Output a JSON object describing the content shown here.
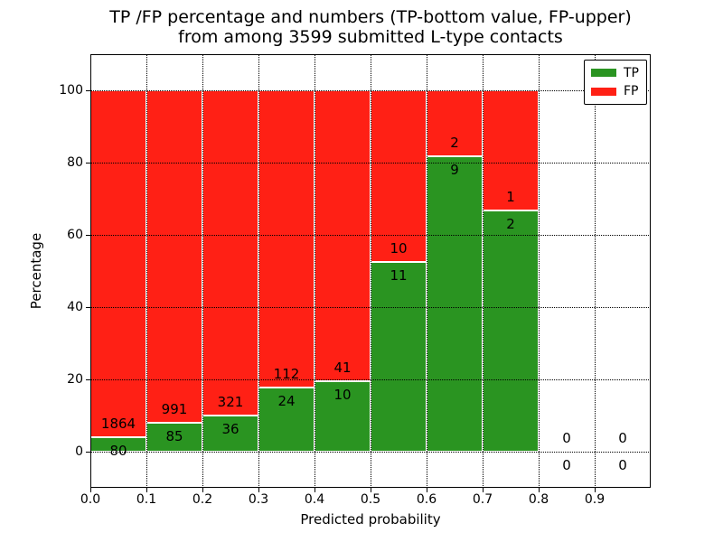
{
  "chart_data": {
    "type": "bar",
    "stacked": true,
    "title_line1": "TP /FP percentage and numbers (TP-bottom value, FP-upper)",
    "title_line2": "from among 3599 submitted L-type contacts",
    "xlabel": "Predicted probability",
    "ylabel": "Percentage",
    "total_submitted": 3599,
    "xlim": [
      0.0,
      1.0
    ],
    "ylim": [
      -10,
      110
    ],
    "xticks": [
      "0.0",
      "0.1",
      "0.2",
      "0.3",
      "0.4",
      "0.5",
      "0.6",
      "0.7",
      "0.8",
      "0.9"
    ],
    "yticks": [
      0,
      20,
      40,
      60,
      80,
      100
    ],
    "grid": true,
    "bin_width": 0.1,
    "bins": [
      {
        "x0": 0.0,
        "tp": 80,
        "fp": 1864,
        "tp_pct": 4.12,
        "fp_pct": 95.88
      },
      {
        "x0": 0.1,
        "tp": 85,
        "fp": 991,
        "tp_pct": 7.9,
        "fp_pct": 92.1
      },
      {
        "x0": 0.2,
        "tp": 36,
        "fp": 321,
        "tp_pct": 10.08,
        "fp_pct": 89.92
      },
      {
        "x0": 0.3,
        "tp": 24,
        "fp": 112,
        "tp_pct": 17.65,
        "fp_pct": 82.35
      },
      {
        "x0": 0.4,
        "tp": 10,
        "fp": 41,
        "tp_pct": 19.61,
        "fp_pct": 80.39
      },
      {
        "x0": 0.5,
        "tp": 11,
        "fp": 10,
        "tp_pct": 52.38,
        "fp_pct": 47.62
      },
      {
        "x0": 0.6,
        "tp": 9,
        "fp": 2,
        "tp_pct": 81.82,
        "fp_pct": 18.18
      },
      {
        "x0": 0.7,
        "tp": 2,
        "fp": 1,
        "tp_pct": 66.67,
        "fp_pct": 33.33
      },
      {
        "x0": 0.8,
        "tp": 0,
        "fp": 0,
        "tp_pct": 0,
        "fp_pct": 0
      },
      {
        "x0": 0.9,
        "tp": 0,
        "fp": 0,
        "tp_pct": 0,
        "fp_pct": 0
      }
    ],
    "legend": {
      "position": "upper right",
      "entries": [
        {
          "label": "TP",
          "color": "#2a9421"
        },
        {
          "label": "FP",
          "color": "#ff2015"
        }
      ]
    },
    "colors": {
      "tp": "#2a9421",
      "fp": "#ff2015",
      "grid": "#000000",
      "bar_edge": "#ffffff",
      "background": "#ffffff"
    }
  }
}
